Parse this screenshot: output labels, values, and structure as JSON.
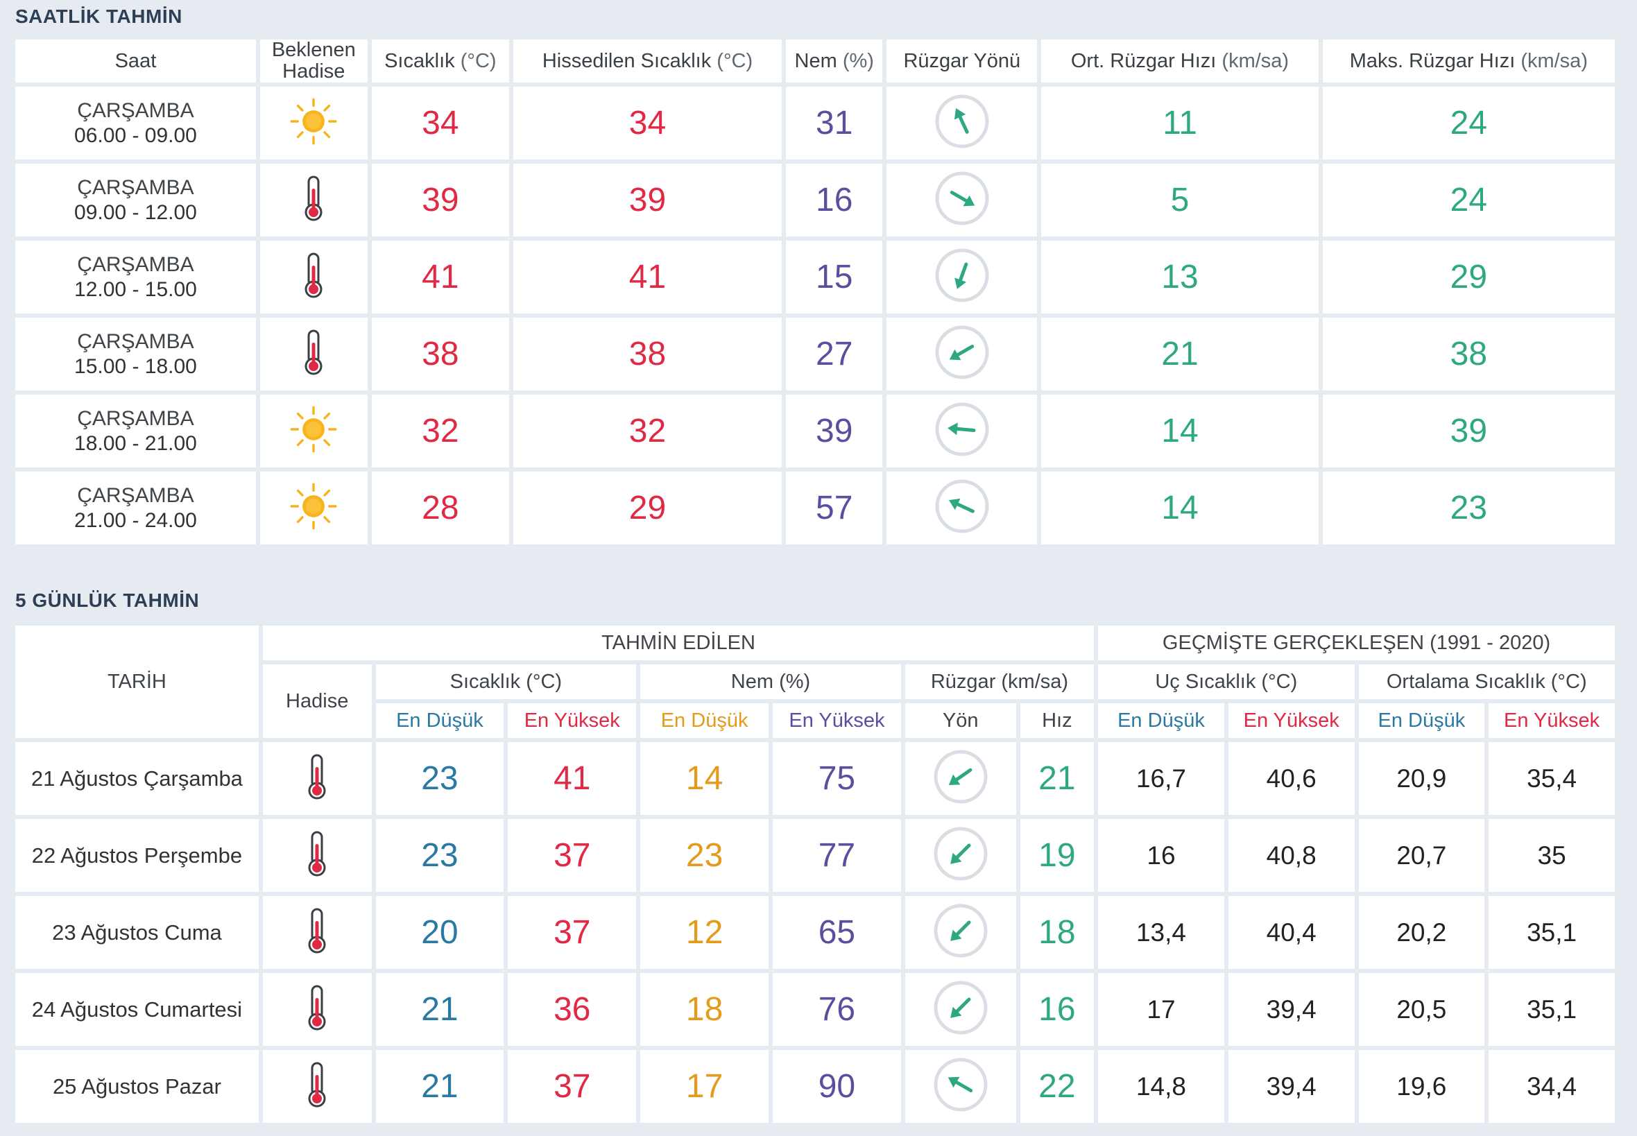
{
  "hourly": {
    "title": "SAATLİK TAHMİN",
    "headers": {
      "saat": "Saat",
      "hadise": "Beklenen Hadise",
      "sicaklik": "Sıcaklık",
      "sicaklik_unit": "(°C)",
      "hissedilen": "Hissedilen Sıcaklık",
      "hissedilen_unit": "(°C)",
      "nem": "Nem",
      "nem_unit": "(%)",
      "ruzgar_yonu": "Rüzgar Yönü",
      "ort_ruzgar": "Ort. Rüzgar Hızı",
      "ort_ruzgar_unit": "(km/sa)",
      "maks_ruzgar": "Maks. Rüzgar Hızı",
      "maks_ruzgar_unit": "(km/sa)"
    },
    "rows": [
      {
        "day": "ÇARŞAMBA",
        "time": "06.00 - 09.00",
        "icon": "sun-icon",
        "temp": "34",
        "feels": "34",
        "humidity": "31",
        "wind_dir_deg": 155,
        "wind_avg": "11",
        "wind_max": "24"
      },
      {
        "day": "ÇARŞAMBA",
        "time": "09.00 - 12.00",
        "icon": "thermometer-icon",
        "temp": "39",
        "feels": "39",
        "humidity": "16",
        "wind_dir_deg": 300,
        "wind_avg": "5",
        "wind_max": "24"
      },
      {
        "day": "ÇARŞAMBA",
        "time": "12.00 - 15.00",
        "icon": "thermometer-icon",
        "temp": "41",
        "feels": "41",
        "humidity": "15",
        "wind_dir_deg": 20,
        "wind_avg": "13",
        "wind_max": "29"
      },
      {
        "day": "ÇARŞAMBA",
        "time": "15.00 - 18.00",
        "icon": "thermometer-icon",
        "temp": "38",
        "feels": "38",
        "humidity": "27",
        "wind_dir_deg": 60,
        "wind_avg": "21",
        "wind_max": "38"
      },
      {
        "day": "ÇARŞAMBA",
        "time": "18.00 - 21.00",
        "icon": "sun-icon",
        "temp": "32",
        "feels": "32",
        "humidity": "39",
        "wind_dir_deg": 95,
        "wind_avg": "14",
        "wind_max": "39"
      },
      {
        "day": "ÇARŞAMBA",
        "time": "21.00 - 24.00",
        "icon": "sun-icon",
        "temp": "28",
        "feels": "29",
        "humidity": "57",
        "wind_dir_deg": 115,
        "wind_avg": "14",
        "wind_max": "23"
      }
    ]
  },
  "daily": {
    "title": "5 GÜNLÜK TAHMİN",
    "headers": {
      "tarih": "TARİH",
      "tahmin": "TAHMİN EDİLEN",
      "gecmis": "GEÇMİŞTE GERÇEKLEŞEN (1991 - 2020)",
      "hadise": "Hadise",
      "sicaklik": "Sıcaklık (°C)",
      "nem": "Nem (%)",
      "ruzgar": "Rüzgar (km/sa)",
      "uc_sicaklik": "Uç Sıcaklık (°C)",
      "ort_sicaklik": "Ortalama Sıcaklık (°C)",
      "en_dusuk": "En Düşük",
      "en_yuksek": "En Yüksek",
      "yon": "Yön",
      "hiz": "Hız"
    },
    "rows": [
      {
        "date": "21 Ağustos Çarşamba",
        "icon": "thermometer-icon",
        "t_min": "23",
        "t_max": "41",
        "h_min": "14",
        "h_max": "75",
        "wind_dir_deg": 55,
        "wind_speed": "21",
        "x_min": "16,7",
        "x_max": "40,6",
        "a_min": "20,9",
        "a_max": "35,4"
      },
      {
        "date": "22 Ağustos Perşembe",
        "icon": "thermometer-icon",
        "t_min": "23",
        "t_max": "37",
        "h_min": "23",
        "h_max": "77",
        "wind_dir_deg": 45,
        "wind_speed": "19",
        "x_min": "16",
        "x_max": "40,8",
        "a_min": "20,7",
        "a_max": "35"
      },
      {
        "date": "23 Ağustos Cuma",
        "icon": "thermometer-icon",
        "t_min": "20",
        "t_max": "37",
        "h_min": "12",
        "h_max": "65",
        "wind_dir_deg": 45,
        "wind_speed": "18",
        "x_min": "13,4",
        "x_max": "40,4",
        "a_min": "20,2",
        "a_max": "35,1"
      },
      {
        "date": "24 Ağustos Cumartesi",
        "icon": "thermometer-icon",
        "t_min": "21",
        "t_max": "36",
        "h_min": "18",
        "h_max": "76",
        "wind_dir_deg": 45,
        "wind_speed": "16",
        "x_min": "17",
        "x_max": "39,4",
        "a_min": "20,5",
        "a_max": "35,1"
      },
      {
        "date": "25 Ağustos Pazar",
        "icon": "thermometer-icon",
        "t_min": "21",
        "t_max": "37",
        "h_min": "17",
        "h_max": "90",
        "wind_dir_deg": 120,
        "wind_speed": "22",
        "x_min": "14,8",
        "x_max": "39,4",
        "a_min": "19,6",
        "a_max": "34,4"
      }
    ]
  },
  "colors": {
    "background": "#e5ebf1",
    "temperature": "#e02945",
    "humidity": "#5a4f9e",
    "wind": "#2ea883",
    "low": "#2a79a3",
    "humidity_low": "#e49a1a",
    "sun": "#f7b21d",
    "thermometer": "#e02945"
  }
}
